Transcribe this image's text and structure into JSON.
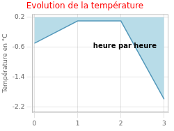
{
  "chart_data": {
    "type": "line",
    "title": "Evolution de la température",
    "title_color": "#ff0000",
    "ylabel": "Température en °C",
    "annotation": "heure par heure",
    "x": [
      0,
      1,
      2,
      3
    ],
    "values": [
      -0.5,
      0.1,
      0.1,
      -2.0
    ],
    "fill_top": 0.2,
    "color": "#5599bb",
    "fill_color": "#b8dce8",
    "xlim": [
      -0.05,
      3.1
    ],
    "ylim": [
      -2.35,
      0.28
    ],
    "xticks": [
      0,
      1,
      2,
      3
    ],
    "yticks": [
      0.2,
      -0.6,
      -1.4,
      -2.2
    ],
    "grid": true
  }
}
